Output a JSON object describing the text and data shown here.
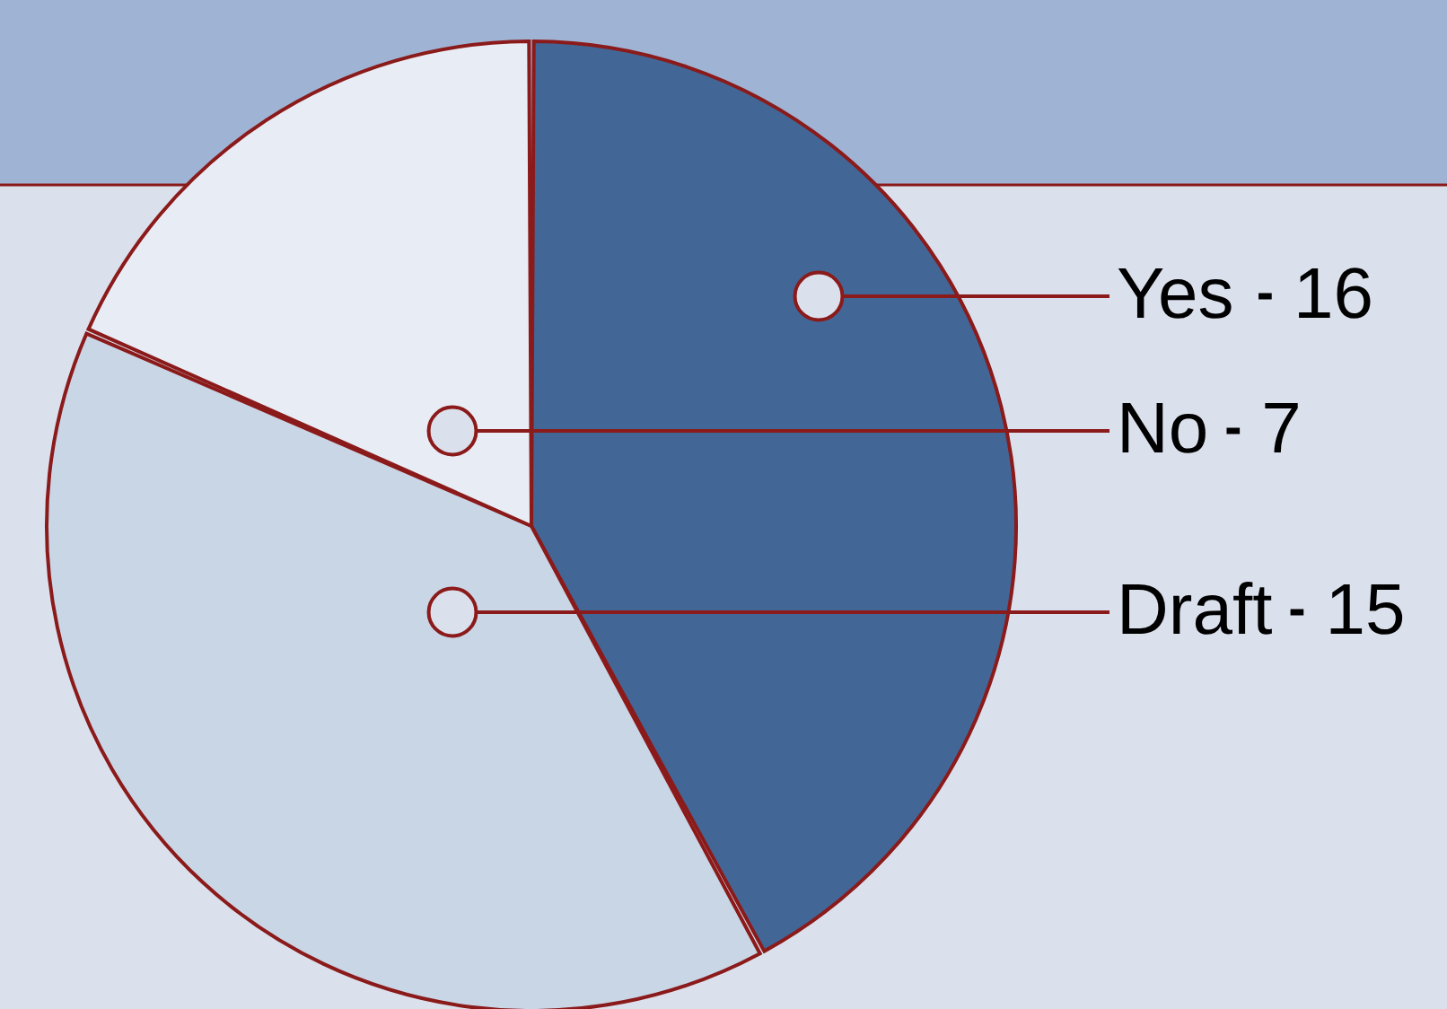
{
  "chart_data": {
    "type": "pie",
    "categories": [
      "Yes",
      "Draft",
      "No"
    ],
    "values": [
      16,
      15,
      7
    ],
    "colors": [
      "#426796",
      "#c9d6e6",
      "#e8edf5"
    ],
    "data_labels": true,
    "legend": false
  }
}
